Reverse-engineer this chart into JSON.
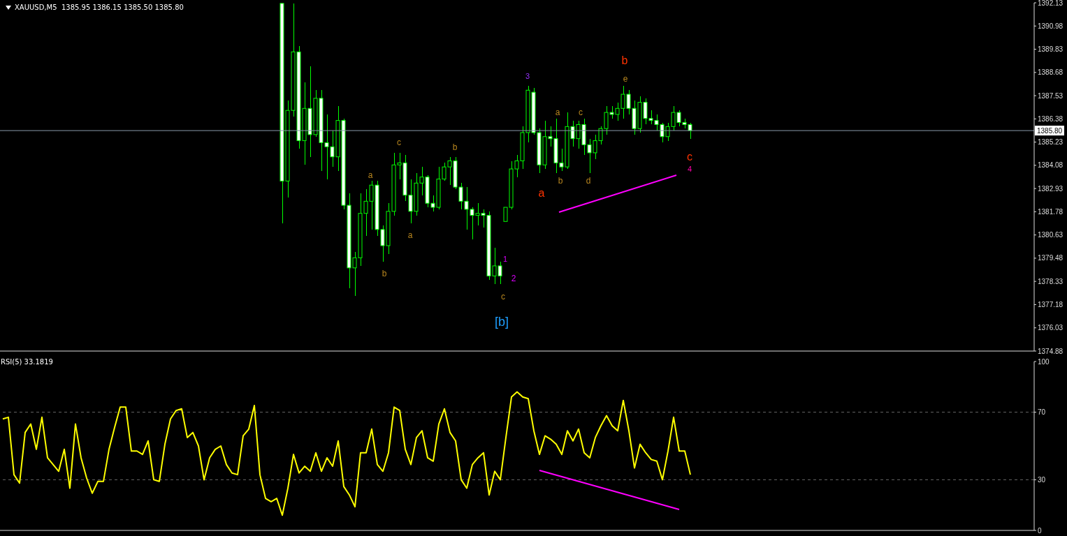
{
  "chart_data": [
    {
      "type": "candlestick",
      "title": "XAUUSD,M5  1385.95 1386.15 1385.50 1385.80",
      "color": "#00ff00",
      "tick_labels": "y",
      "categories": [
        null,
        null,
        null,
        null,
        null,
        null,
        null,
        null,
        null,
        null,
        null,
        null,
        null,
        null,
        null,
        null,
        null,
        null,
        null,
        null,
        null,
        null,
        null,
        null,
        null,
        null,
        null,
        null,
        null,
        null,
        null,
        null,
        null,
        null,
        null,
        null,
        null,
        null,
        null,
        null,
        null,
        null,
        null,
        null,
        null,
        null,
        null,
        null,
        null,
        null,
        null,
        null,
        null,
        null,
        null,
        null,
        null,
        null,
        null,
        null,
        null,
        null,
        null,
        null,
        null,
        null,
        null,
        null,
        null,
        null,
        null,
        null,
        null,
        null,
        null,
        null,
        null,
        null,
        null,
        null,
        null,
        null,
        null,
        null,
        null,
        null,
        null,
        null,
        null,
        null,
        null,
        null,
        null,
        null,
        null,
        null,
        null,
        null,
        null,
        null,
        null,
        null,
        null,
        null,
        null,
        null,
        null,
        null,
        null,
        null,
        null,
        null,
        null,
        null,
        null,
        null,
        null,
        null,
        null,
        null,
        null,
        null,
        null,
        null,
        null,
        null,
        null,
        null,
        null,
        null,
        null,
        null,
        null,
        null,
        null,
        null,
        null,
        null,
        null,
        null,
        null,
        null,
        null,
        null,
        null,
        null,
        null,
        null,
        null,
        null,
        null,
        null,
        null,
        null,
        null,
        null,
        null,
        null,
        null,
        null,
        null,
        null,
        null,
        null,
        null,
        null,
        null,
        null,
        null,
        null,
        null,
        null,
        null,
        null,
        null,
        null,
        null,
        null,
        null,
        null,
        null,
        null,
        null,
        null,
        null
      ],
      "ohlc": [
        null,
        null,
        null,
        null,
        null,
        null,
        null,
        null,
        null,
        null,
        null,
        null,
        null,
        null,
        null,
        null,
        null,
        null,
        null,
        null,
        null,
        null,
        null,
        null,
        null,
        null,
        null,
        null,
        null,
        null,
        null,
        null,
        null,
        null,
        null,
        null,
        null,
        null,
        null,
        null,
        null,
        null,
        null,
        null,
        null,
        null,
        null,
        null,
        null,
        null,
        [
          1392.1,
          1392.1,
          1381.2,
          1383.3
        ],
        [
          1383.3,
          1387.3,
          1382.5,
          1386.8
        ],
        [
          1386.8,
          1392.1,
          1386.5,
          1389.7
        ],
        [
          1389.7,
          1390.0,
          1384.9,
          1385.3
        ],
        [
          1385.3,
          1388.2,
          1384.1,
          1386.9
        ],
        [
          1386.9,
          1389.0,
          1384.5,
          1385.6
        ],
        [
          1385.6,
          1387.8,
          1385.5,
          1387.4
        ],
        [
          1387.4,
          1387.8,
          1383.8,
          1385.2
        ],
        [
          1385.2,
          1386.6,
          1383.4,
          1385.0
        ],
        [
          1385.0,
          1385.8,
          1384.0,
          1384.5
        ],
        [
          1384.5,
          1387.0,
          1383.8,
          1386.3
        ],
        [
          1386.3,
          1386.4,
          1381.9,
          1382.1
        ],
        [
          1382.1,
          1382.7,
          1378.0,
          1379.0
        ],
        [
          1379.0,
          1379.8,
          1377.6,
          1379.5
        ],
        [
          1379.5,
          1382.7,
          1379.1,
          1381.7
        ],
        [
          1381.7,
          1382.9,
          1380.6,
          1382.3
        ],
        [
          1382.3,
          1383.3,
          1380.9,
          1383.1
        ],
        [
          1383.1,
          1383.3,
          1380.6,
          1380.9
        ],
        [
          1380.9,
          1381.1,
          1379.3,
          1380.1
        ],
        [
          1380.1,
          1382.2,
          1379.7,
          1381.8
        ],
        [
          1381.8,
          1384.7,
          1381.6,
          1384.1
        ],
        [
          1384.1,
          1384.7,
          1383.4,
          1384.2
        ],
        [
          1384.2,
          1384.6,
          1382.3,
          1382.6
        ],
        [
          1382.6,
          1383.4,
          1381.2,
          1381.8
        ],
        [
          1381.8,
          1383.7,
          1381.6,
          1383.2
        ],
        [
          1383.2,
          1384.0,
          1382.6,
          1383.5
        ],
        [
          1383.5,
          1383.6,
          1382.0,
          1382.2
        ],
        [
          1382.2,
          1382.6,
          1381.8,
          1382.0
        ],
        [
          1382.0,
          1384.0,
          1381.9,
          1383.4
        ],
        [
          1383.4,
          1384.2,
          1383.3,
          1384.0
        ],
        [
          1384.0,
          1384.5,
          1383.1,
          1384.3
        ],
        [
          1384.3,
          1384.5,
          1382.9,
          1383.0
        ],
        [
          1383.0,
          1383.2,
          1381.9,
          1382.3
        ],
        [
          1382.3,
          1383.0,
          1380.9,
          1381.9
        ],
        [
          1381.9,
          1382.0,
          1380.4,
          1381.6
        ],
        [
          1381.6,
          1382.2,
          1381.1,
          1381.7
        ],
        [
          1381.7,
          1381.9,
          1381.0,
          1381.6
        ],
        [
          1381.6,
          1381.8,
          1378.4,
          1378.6
        ],
        [
          1378.6,
          1380.0,
          1378.2,
          1379.1
        ],
        [
          1379.1,
          1379.3,
          1378.2,
          1378.6
        ],
        [
          1381.3,
          1382.0,
          1381.3,
          1382.0
        ],
        [
          1382.0,
          1384.3,
          1381.9,
          1383.9
        ],
        [
          1383.9,
          1384.6,
          1383.5,
          1384.3
        ],
        [
          1384.3,
          1386.0,
          1383.9,
          1385.7
        ],
        [
          1385.7,
          1388.0,
          1385.2,
          1387.8
        ],
        [
          1387.7,
          1387.9,
          1385.6,
          1385.7
        ],
        [
          1385.7,
          1385.9,
          1383.7,
          1384.1
        ],
        [
          1384.1,
          1386.3,
          1383.9,
          1385.5
        ],
        [
          1385.5,
          1386.0,
          1385.0,
          1385.4
        ],
        [
          1385.4,
          1386.4,
          1383.7,
          1384.2
        ],
        [
          1384.2,
          1384.9,
          1383.8,
          1384.0
        ],
        [
          1384.0,
          1386.7,
          1383.9,
          1386.0
        ],
        [
          1386.0,
          1386.3,
          1385.0,
          1385.4
        ],
        [
          1385.4,
          1386.3,
          1384.9,
          1386.1
        ],
        [
          1386.1,
          1386.4,
          1384.6,
          1385.1
        ],
        [
          1385.1,
          1385.4,
          1383.7,
          1384.7
        ],
        [
          1384.7,
          1385.6,
          1384.4,
          1385.3
        ],
        [
          1385.3,
          1386.0,
          1385.1,
          1385.9
        ],
        [
          1385.9,
          1387.0,
          1385.6,
          1386.7
        ],
        [
          1386.7,
          1387.0,
          1386.4,
          1386.6
        ],
        [
          1386.6,
          1387.2,
          1386.3,
          1386.9
        ],
        [
          1386.9,
          1388.0,
          1386.4,
          1387.6
        ],
        [
          1387.6,
          1387.8,
          1386.6,
          1386.9
        ],
        [
          1386.9,
          1387.3,
          1385.6,
          1385.9
        ],
        [
          1385.9,
          1387.5,
          1385.7,
          1387.2
        ],
        [
          1387.2,
          1387.4,
          1386.1,
          1386.4
        ],
        [
          1386.4,
          1386.8,
          1386.1,
          1386.3
        ],
        [
          1386.3,
          1386.6,
          1385.8,
          1386.1
        ],
        [
          1386.1,
          1386.2,
          1385.2,
          1385.5
        ],
        [
          1385.5,
          1386.2,
          1385.3,
          1386.0
        ],
        [
          1386.0,
          1387.0,
          1385.8,
          1386.7
        ],
        [
          1386.7,
          1386.8,
          1386.0,
          1386.2
        ],
        [
          1386.2,
          1386.4,
          1385.9,
          1386.1
        ],
        [
          1386.1,
          1386.2,
          1385.4,
          1385.8
        ],
        null,
        null,
        null,
        null,
        null,
        null,
        null,
        null,
        null,
        null,
        null,
        null,
        null,
        null,
        null,
        null,
        null,
        null,
        null,
        null,
        null,
        null,
        null,
        null,
        null,
        null,
        null,
        null,
        null,
        null,
        null,
        null,
        null,
        null,
        null,
        null,
        null,
        null,
        null,
        null,
        null,
        null,
        null,
        null,
        null,
        null,
        null,
        null,
        null,
        null,
        null,
        null,
        null,
        null,
        null,
        null,
        null,
        null,
        null,
        null,
        null
      ],
      "ylim": [
        1374.88,
        1392.13
      ],
      "yticks": [
        1374.88,
        1376.03,
        1377.18,
        1378.33,
        1379.48,
        1380.63,
        1381.78,
        1382.93,
        1384.08,
        1385.23,
        1386.38,
        1387.53,
        1388.68,
        1389.83,
        1390.98,
        1392.13
      ],
      "ref_lines": [
        {
          "axis": "y",
          "value": 1385.8,
          "label": "1385.80",
          "color": "#8899aa"
        }
      ],
      "annotations": [
        "c",
        "b",
        "a",
        "a",
        "b",
        "c",
        "[b]",
        "1",
        "2",
        "3",
        "a",
        "a",
        "c",
        "b",
        "d",
        "b",
        "e",
        "c",
        "4"
      ]
    },
    {
      "type": "line",
      "title": "RSI(5) 33.1819",
      "tick_labels": "y",
      "categories": [
        null,
        null,
        null,
        null,
        null,
        null,
        null,
        null,
        null,
        null,
        null,
        null,
        null,
        null,
        null,
        null,
        null,
        null,
        null,
        null,
        null,
        null,
        null,
        null,
        null,
        null,
        null,
        null,
        null,
        null,
        null,
        null,
        null,
        null,
        null,
        null,
        null,
        null,
        null,
        null,
        null,
        null,
        null,
        null,
        null,
        null,
        null,
        null,
        null,
        null,
        null,
        null,
        null,
        null,
        null,
        null,
        null,
        null,
        null,
        null,
        null,
        null,
        null,
        null,
        null,
        null,
        null,
        null,
        null,
        null,
        null,
        null,
        null,
        null,
        null,
        null,
        null,
        null,
        null,
        null,
        null,
        null,
        null,
        null,
        null,
        null,
        null,
        null,
        null,
        null,
        null,
        null,
        null,
        null,
        null,
        null,
        null,
        null,
        null,
        null,
        null,
        null,
        null,
        null,
        null,
        null,
        null,
        null,
        null,
        null,
        null,
        null,
        null,
        null,
        null,
        null,
        null,
        null,
        null,
        null,
        null,
        null,
        null,
        null,
        null,
        null,
        null,
        null,
        null,
        null,
        null,
        null,
        null,
        null,
        null,
        null,
        null,
        null,
        null,
        null,
        null,
        null,
        null,
        null,
        null,
        null,
        null,
        null,
        null,
        null,
        null,
        null,
        null,
        null,
        null,
        null,
        null,
        null,
        null,
        null,
        null,
        null,
        null,
        null,
        null,
        null,
        null,
        null,
        null,
        null,
        null,
        null,
        null,
        null,
        null,
        null,
        null,
        null,
        null,
        null,
        null,
        null,
        null,
        null,
        null
      ],
      "series": [
        {
          "color": "#ffff00",
          "values": [
            66,
            67,
            33,
            28,
            58,
            63,
            48,
            67,
            43,
            39,
            35,
            48,
            25,
            63,
            43,
            31,
            22,
            29,
            29,
            48,
            61,
            73,
            73,
            47,
            47,
            45,
            53,
            30,
            29,
            51,
            66,
            71,
            72,
            55,
            58,
            50,
            30,
            43,
            48,
            50,
            39,
            34,
            33,
            56,
            60,
            74,
            33,
            19,
            17,
            19,
            9,
            25,
            45,
            34,
            38,
            35,
            46,
            35,
            43,
            38,
            53,
            26,
            21,
            14,
            46,
            46,
            60,
            39,
            35,
            46,
            73,
            71,
            48,
            39,
            55,
            59,
            43,
            41,
            63,
            72,
            58,
            53,
            30,
            25,
            39,
            43,
            46,
            21,
            35,
            30,
            55,
            79,
            82,
            79,
            78,
            59,
            45,
            56,
            54,
            51,
            45,
            59,
            53,
            60,
            46,
            43,
            55,
            62,
            68,
            62,
            59,
            77,
            59,
            37,
            51,
            46,
            42,
            41,
            30,
            47,
            67,
            47,
            47,
            33,
            null,
            null,
            null,
            null,
            null,
            null,
            null,
            null,
            null,
            null,
            null,
            null,
            null,
            null,
            null,
            null,
            null,
            null,
            null,
            null,
            null,
            null,
            null,
            null,
            null,
            null,
            null,
            null,
            null,
            null,
            null,
            null,
            null,
            null,
            null,
            null,
            null,
            null,
            null,
            null,
            null,
            null,
            null,
            null,
            null,
            null,
            null,
            null,
            null,
            null,
            null,
            null,
            null,
            null,
            null,
            null,
            null,
            null,
            null,
            null,
            null
          ]
        }
      ],
      "ylim": [
        0,
        100
      ],
      "yticks": [
        0,
        30,
        70,
        100
      ],
      "ref_lines": [
        {
          "axis": "y",
          "value": 70,
          "label": null,
          "color": "#666666",
          "line_style": "dashed"
        },
        {
          "axis": "y",
          "value": 30,
          "label": null,
          "color": "#666666",
          "line_style": "dashed"
        }
      ]
    }
  ]
}
